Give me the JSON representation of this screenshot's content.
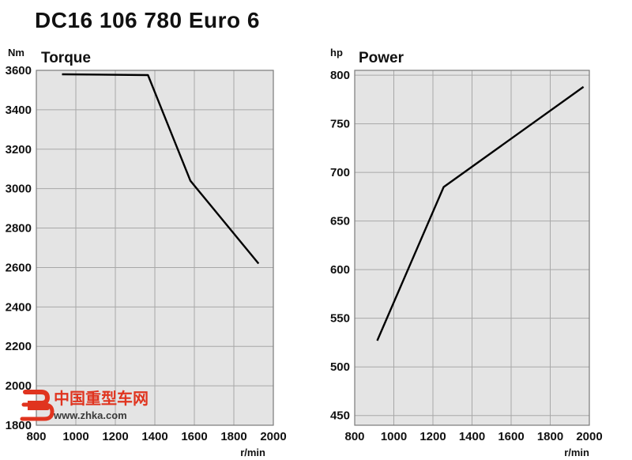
{
  "page": {
    "title": "DC16 106 780 Euro 6"
  },
  "watermark": {
    "site_name": "中国重型车网",
    "url": "www.zhka.com",
    "accent_color": "#e0341f"
  },
  "chart_data": [
    {
      "type": "line",
      "title": "Torque",
      "ylabel": "Nm",
      "xlabel": "r/min",
      "xlim": [
        800,
        2000
      ],
      "ylim": [
        1800,
        3600
      ],
      "xticks": [
        800,
        1000,
        1200,
        1400,
        1600,
        1800,
        2000
      ],
      "yticks": [
        1800,
        2000,
        2200,
        2400,
        2600,
        2800,
        3000,
        3200,
        3400,
        3600
      ],
      "grid": true,
      "series": [
        {
          "x": [
            930,
            1365,
            1580,
            1925
          ],
          "y": [
            3580,
            3576,
            3040,
            2620
          ]
        }
      ]
    },
    {
      "type": "line",
      "title": "Power",
      "ylabel": "hp",
      "xlabel": "r/min",
      "xlim": [
        800,
        2000
      ],
      "ylim": [
        440,
        805
      ],
      "xticks": [
        800,
        1000,
        1200,
        1400,
        1600,
        1800,
        2000
      ],
      "yticks": [
        450,
        500,
        550,
        600,
        650,
        700,
        750,
        800
      ],
      "grid": true,
      "series": [
        {
          "x": [
            915,
            1255,
            1970
          ],
          "y": [
            527,
            685,
            788
          ]
        }
      ]
    }
  ]
}
